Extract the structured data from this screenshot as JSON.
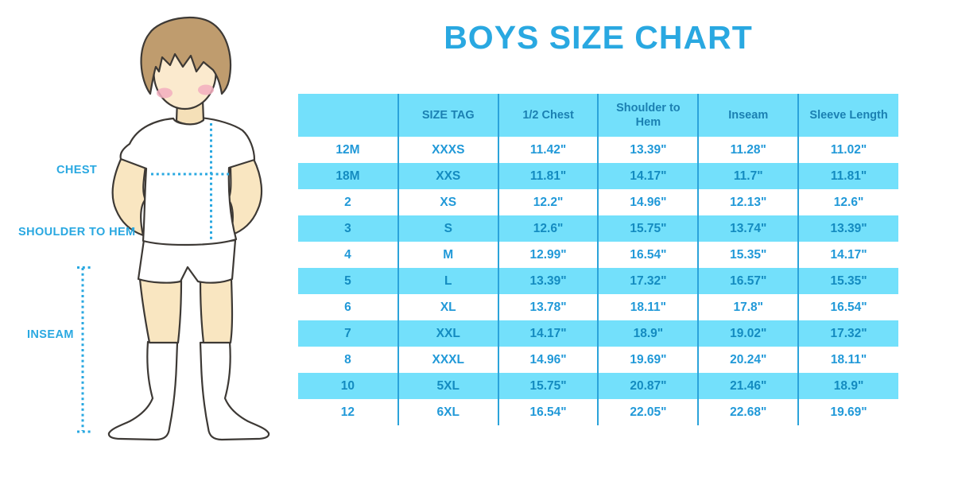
{
  "title": "BOYS SIZE CHART",
  "figure": {
    "labels": {
      "chest": "CHEST",
      "shoulder_to_hem": "SHOULDER TO HEM",
      "inseam": "INSEAM"
    }
  },
  "table": {
    "headers": [
      "",
      "SIZE TAG",
      "1/2 Chest",
      "Shoulder to Hem",
      "Inseam",
      "Sleeve Length"
    ],
    "rows": [
      [
        "12M",
        "XXXS",
        "11.42\"",
        "13.39\"",
        "11.28\"",
        "11.02\""
      ],
      [
        "18M",
        "XXS",
        "11.81\"",
        "14.17\"",
        "11.7\"",
        "11.81\""
      ],
      [
        "2",
        "XS",
        "12.2\"",
        "14.96\"",
        "12.13\"",
        "12.6\""
      ],
      [
        "3",
        "S",
        "12.6\"",
        "15.75\"",
        "13.74\"",
        "13.39\""
      ],
      [
        "4",
        "M",
        "12.99\"",
        "16.54\"",
        "15.35\"",
        "14.17\""
      ],
      [
        "5",
        "L",
        "13.39\"",
        "17.32\"",
        "16.57\"",
        "15.35\""
      ],
      [
        "6",
        "XL",
        "13.78\"",
        "18.11\"",
        "17.8\"",
        "16.54\""
      ],
      [
        "7",
        "XXL",
        "14.17\"",
        "18.9\"",
        "19.02\"",
        "17.32\""
      ],
      [
        "8",
        "XXXL",
        "14.96\"",
        "19.69\"",
        "20.24\"",
        "18.11\""
      ],
      [
        "10",
        "5XL",
        "15.75\"",
        "20.87\"",
        "21.46\"",
        "18.9\""
      ],
      [
        "12",
        "6XL",
        "16.54\"",
        "22.05\"",
        "22.68\"",
        "19.69\""
      ]
    ]
  },
  "colors": {
    "accent_blue": "#29a8e1",
    "header_text": "#1b80b2",
    "cell_text": "#2199d8",
    "cell_text_on_stripe": "#148bc0",
    "stripe_cyan": "#73e0fb",
    "grid_line": "#2ba3da",
    "dotted_line": "#29a8e1",
    "skin": "#f9e6c1",
    "face": "#fbeace",
    "hair": "#bf9c6e",
    "blush": "#f2aebe",
    "outline": "#3d3935"
  }
}
